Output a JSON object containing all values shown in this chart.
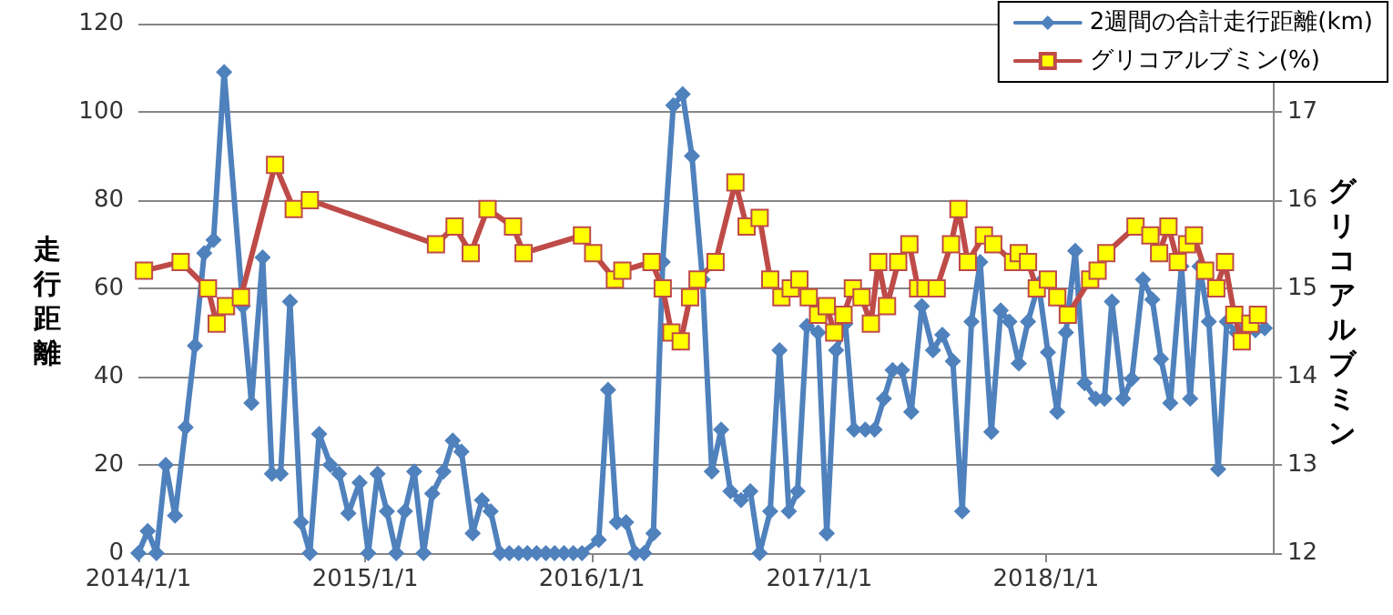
{
  "chart_data": {
    "type": "line",
    "ylabel": "走行距離",
    "y2label": "グリコアルブミン",
    "legend": "top right",
    "grid": "y",
    "line_style": "solid",
    "xlim": [
      "2014-01-01",
      "2019-01-01"
    ],
    "xticks": [
      {
        "value": "2014-01-01",
        "label": "2014/1/1"
      },
      {
        "value": "2015-01-01",
        "label": "2015/1/1"
      },
      {
        "value": "2016-01-01",
        "label": "2016/1/1"
      },
      {
        "value": "2017-01-01",
        "label": "2017/1/1"
      },
      {
        "value": "2018-01-01",
        "label": "2018/1/1"
      }
    ],
    "ylim": [
      0,
      120
    ],
    "yticks": [
      0,
      20,
      40,
      60,
      80,
      100,
      120
    ],
    "y2lim": [
      12,
      18
    ],
    "y2ticks": [
      12,
      13,
      14,
      15,
      16,
      17
    ],
    "series": [
      {
        "name": "2週間の合計走行距離(km)",
        "color": "#4f81bd",
        "marker": "diamond",
        "x": [
          "2014-01-01",
          "2014-01-16",
          "2014-01-30",
          "2014-02-14",
          "2014-03-01",
          "2014-03-18",
          "2014-04-02",
          "2014-04-17",
          "2014-05-02",
          "2014-05-19",
          "2014-06-18",
          "2014-07-02",
          "2014-07-20",
          "2014-08-04",
          "2014-08-18",
          "2014-09-02",
          "2014-09-20",
          "2014-10-04",
          "2014-10-19",
          "2014-11-06",
          "2014-11-20",
          "2014-12-05",
          "2014-12-23",
          "2015-01-06",
          "2015-01-21",
          "2015-02-05",
          "2015-02-20",
          "2015-03-06",
          "2015-03-21",
          "2015-04-05",
          "2015-04-19",
          "2015-05-07",
          "2015-05-22",
          "2015-06-05",
          "2015-06-23",
          "2015-07-08",
          "2015-07-22",
          "2015-08-06",
          "2015-08-21",
          "2015-09-05",
          "2015-09-19",
          "2015-10-04",
          "2015-10-19",
          "2015-11-02",
          "2015-11-17",
          "2015-12-02",
          "2015-12-16",
          "2016-01-12",
          "2016-01-27",
          "2016-02-10",
          "2016-02-25",
          "2016-03-11",
          "2016-03-25",
          "2016-04-09",
          "2016-04-24",
          "2016-05-11",
          "2016-05-26",
          "2016-06-10",
          "2016-06-27",
          "2016-07-12",
          "2016-07-27",
          "2016-08-11",
          "2016-08-28",
          "2016-09-12",
          "2016-09-27",
          "2016-10-14",
          "2016-10-29",
          "2016-11-13",
          "2016-11-27",
          "2016-12-12",
          "2016-12-30",
          "2017-01-13",
          "2017-01-28",
          "2017-02-12",
          "2017-02-26",
          "2017-03-16",
          "2017-03-31",
          "2017-04-15",
          "2017-04-29",
          "2017-05-14",
          "2017-05-29",
          "2017-06-15",
          "2017-07-03",
          "2017-07-18",
          "2017-08-04",
          "2017-08-19",
          "2017-09-03",
          "2017-09-17",
          "2017-10-05",
          "2017-10-20",
          "2017-11-03",
          "2017-11-18",
          "2017-12-03",
          "2017-12-20",
          "2018-01-04",
          "2018-01-19",
          "2018-02-02",
          "2018-02-17",
          "2018-03-04",
          "2018-03-22",
          "2018-04-05",
          "2018-04-17",
          "2018-05-05",
          "2018-05-19",
          "2018-06-06",
          "2018-06-21",
          "2018-07-05",
          "2018-07-20",
          "2018-08-07",
          "2018-08-21",
          "2018-09-05",
          "2018-09-20",
          "2018-10-05",
          "2018-10-19",
          "2018-11-03",
          "2018-11-20",
          "2018-12-04",
          "2018-12-19"
        ],
        "values": [
          0,
          5,
          0,
          20,
          8.5,
          28.5,
          47,
          68,
          71,
          109,
          56,
          34,
          67,
          18,
          18,
          57,
          7,
          0,
          27,
          20,
          18,
          9,
          16,
          0,
          18,
          9.5,
          0,
          9.5,
          18.5,
          0,
          13.5,
          18.5,
          25.5,
          23,
          4.5,
          12,
          9.5,
          0,
          0,
          0,
          0,
          0,
          0,
          0,
          0,
          0,
          0,
          3,
          37,
          7,
          7,
          0,
          0,
          4.5,
          66,
          101.5,
          104,
          90,
          62,
          18.5,
          28,
          14,
          12,
          14,
          0,
          9.5,
          46,
          9.5,
          14,
          51.5,
          50,
          4.5,
          46,
          52,
          28,
          28,
          28,
          35,
          41.5,
          41.5,
          32,
          56,
          46,
          49.5,
          43.5,
          9.5,
          52.5,
          66,
          27.5,
          55,
          52.5,
          43,
          52.5,
          61,
          45.5,
          32,
          50,
          68.5,
          38.5,
          35,
          35,
          57,
          35,
          39.5,
          62,
          57.5,
          44,
          34,
          65,
          35,
          65,
          52.5,
          19,
          52.5,
          50,
          51.5,
          50.5,
          51
        ]
      },
      {
        "name": "グリコアルブミン(%)",
        "color": "#be4b48",
        "marker": "square",
        "axis": "y2",
        "x": [
          "2014-01-10",
          "2014-03-10",
          "2014-04-23",
          "2014-05-07",
          "2014-05-22",
          "2014-06-15",
          "2014-08-09",
          "2014-09-08",
          "2014-10-04",
          "2015-04-25",
          "2015-05-25",
          "2015-06-20",
          "2015-07-17",
          "2015-08-27",
          "2015-09-13",
          "2015-12-16",
          "2016-01-03",
          "2016-02-07",
          "2016-02-19",
          "2016-04-06",
          "2016-04-24",
          "2016-05-08",
          "2016-05-23",
          "2016-06-07",
          "2016-06-19",
          "2016-07-18",
          "2016-08-19",
          "2016-09-06",
          "2016-09-27",
          "2016-10-14",
          "2016-11-01",
          "2016-11-16",
          "2016-11-30",
          "2016-12-15",
          "2016-12-30",
          "2017-01-13",
          "2017-01-25",
          "2017-02-09",
          "2017-02-24",
          "2017-03-10",
          "2017-03-25",
          "2017-04-06",
          "2017-04-20",
          "2017-05-08",
          "2017-05-26",
          "2017-06-09",
          "2017-06-21",
          "2017-07-09",
          "2017-08-01",
          "2017-08-13",
          "2017-08-28",
          "2017-09-23",
          "2017-10-08",
          "2017-11-09",
          "2017-11-18",
          "2017-12-03",
          "2017-12-17",
          "2018-01-04",
          "2018-01-19",
          "2018-02-05",
          "2018-03-13",
          "2018-03-25",
          "2018-04-08",
          "2018-05-25",
          "2018-06-18",
          "2018-07-02",
          "2018-07-17",
          "2018-08-01",
          "2018-08-16",
          "2018-08-27",
          "2018-09-14",
          "2018-10-02",
          "2018-10-16",
          "2018-10-31",
          "2018-11-12",
          "2018-11-26",
          "2018-12-08"
        ],
        "values": [
          15.2,
          15.3,
          15.0,
          14.6,
          14.8,
          14.9,
          16.4,
          15.9,
          16.0,
          15.5,
          15.7,
          15.4,
          15.9,
          15.7,
          15.4,
          15.6,
          15.4,
          15.1,
          15.2,
          15.3,
          15.0,
          14.5,
          14.4,
          14.9,
          15.1,
          15.3,
          16.2,
          15.7,
          15.8,
          15.1,
          14.9,
          15.0,
          15.1,
          14.9,
          14.7,
          14.8,
          14.5,
          14.7,
          15.0,
          14.9,
          14.6,
          15.3,
          14.8,
          15.3,
          15.5,
          15.0,
          15.0,
          15.0,
          15.5,
          15.9,
          15.3,
          15.6,
          15.5,
          15.3,
          15.4,
          15.3,
          15.0,
          15.1,
          14.9,
          14.7,
          15.1,
          15.2,
          15.4,
          15.7,
          15.6,
          15.4,
          15.7,
          15.3,
          15.5,
          15.6,
          15.2,
          15.0,
          15.3,
          14.7,
          14.4,
          14.6,
          14.7
        ]
      }
    ]
  }
}
